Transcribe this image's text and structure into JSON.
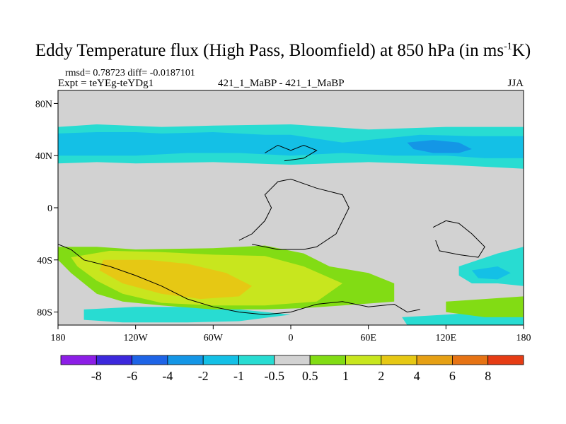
{
  "chart_data": {
    "type": "heatmap",
    "title": "Eddy Temperature flux (High Pass, Bloomfield) at 850 hPa (in ms",
    "title_sup": "-1",
    "title_tail": "K)",
    "stats": "rmsd= 0.78723 diff= -0.0187101",
    "expt": "Expt = teYEg-teYDg1",
    "run_label": "421_1_MaBP - 421_1_MaBP",
    "season": "JJA",
    "x_range": [
      -180,
      180
    ],
    "y_range": [
      -90,
      90
    ],
    "x_ticks": [
      {
        "value": -180,
        "label": "180"
      },
      {
        "value": -120,
        "label": "120W"
      },
      {
        "value": -60,
        "label": "60W"
      },
      {
        "value": 0,
        "label": "0"
      },
      {
        "value": 60,
        "label": "60E"
      },
      {
        "value": 120,
        "label": "120E"
      },
      {
        "value": 180,
        "label": "180"
      }
    ],
    "y_ticks": [
      {
        "value": 80,
        "label": "80N"
      },
      {
        "value": 40,
        "label": "40N"
      },
      {
        "value": 0,
        "label": "0"
      },
      {
        "value": -40,
        "label": "40S"
      },
      {
        "value": -80,
        "label": "80S"
      }
    ],
    "levels": [
      "-8",
      "-6",
      "-4",
      "-2",
      "-1",
      "-0.5",
      "0.5",
      "1",
      "2",
      "4",
      "6",
      "8"
    ],
    "colors": [
      "#8c1ee6",
      "#3c28dc",
      "#1e64e6",
      "#1496e6",
      "#14c0e6",
      "#28dcd2",
      "#d2d2d2",
      "#82dc14",
      "#c8e61e",
      "#e6c814",
      "#e6a014",
      "#e67314",
      "#e63c14"
    ],
    "regions": [
      {
        "level_index": 5,
        "points": [
          [
            -180,
            62
          ],
          [
            -150,
            64
          ],
          [
            -100,
            62
          ],
          [
            -60,
            63
          ],
          [
            0,
            64
          ],
          [
            60,
            60
          ],
          [
            120,
            62
          ],
          [
            180,
            62
          ],
          [
            180,
            30
          ],
          [
            120,
            33
          ],
          [
            60,
            35
          ],
          [
            0,
            33
          ],
          [
            -60,
            35
          ],
          [
            -120,
            34
          ],
          [
            -150,
            35
          ],
          [
            -180,
            34
          ]
        ]
      },
      {
        "level_index": 4,
        "points": [
          [
            -180,
            57
          ],
          [
            -150,
            58
          ],
          [
            -120,
            58
          ],
          [
            -100,
            57
          ],
          [
            -60,
            58
          ],
          [
            -20,
            56
          ],
          [
            0,
            56
          ],
          [
            40,
            50
          ],
          [
            60,
            52
          ],
          [
            100,
            56
          ],
          [
            140,
            55
          ],
          [
            180,
            55
          ],
          [
            180,
            38
          ],
          [
            150,
            38
          ],
          [
            120,
            40
          ],
          [
            80,
            40
          ],
          [
            40,
            42
          ],
          [
            0,
            40
          ],
          [
            -40,
            42
          ],
          [
            -80,
            42
          ],
          [
            -120,
            40
          ],
          [
            -150,
            40
          ],
          [
            -180,
            40
          ]
        ]
      },
      {
        "level_index": 3,
        "points": [
          [
            90,
            50
          ],
          [
            110,
            52
          ],
          [
            130,
            50
          ],
          [
            140,
            45
          ],
          [
            130,
            42
          ],
          [
            110,
            42
          ],
          [
            95,
            45
          ]
        ]
      },
      {
        "level_index": 5,
        "points": [
          [
            86,
            -84
          ],
          [
            120,
            -82
          ],
          [
            150,
            -80
          ],
          [
            180,
            -80
          ],
          [
            180,
            -90
          ],
          [
            90,
            -90
          ]
        ]
      },
      {
        "level_index": 5,
        "points": [
          [
            -160,
            -78
          ],
          [
            -120,
            -76
          ],
          [
            -80,
            -76
          ],
          [
            -40,
            -78
          ],
          [
            0,
            -82
          ],
          [
            -40,
            -87
          ],
          [
            -80,
            -88
          ],
          [
            -130,
            -88
          ],
          [
            -160,
            -86
          ]
        ]
      },
      {
        "level_index": 5,
        "points": [
          [
            130,
            -45
          ],
          [
            160,
            -35
          ],
          [
            180,
            -30
          ],
          [
            180,
            -60
          ],
          [
            160,
            -58
          ],
          [
            140,
            -58
          ],
          [
            130,
            -52
          ]
        ]
      },
      {
        "level_index": 4,
        "points": [
          [
            140,
            -48
          ],
          [
            160,
            -45
          ],
          [
            170,
            -50
          ],
          [
            160,
            -55
          ],
          [
            145,
            -54
          ]
        ]
      },
      {
        "level_index": 7,
        "points": [
          [
            -180,
            -30
          ],
          [
            -150,
            -30
          ],
          [
            -120,
            -32
          ],
          [
            -60,
            -31
          ],
          [
            -20,
            -29
          ],
          [
            10,
            -35
          ],
          [
            30,
            -45
          ],
          [
            60,
            -50
          ],
          [
            80,
            -58
          ],
          [
            80,
            -72
          ],
          [
            40,
            -75
          ],
          [
            10,
            -77
          ],
          [
            -20,
            -78
          ],
          [
            -60,
            -78
          ],
          [
            -100,
            -75
          ],
          [
            -130,
            -72
          ],
          [
            -150,
            -66
          ],
          [
            -170,
            -50
          ],
          [
            -180,
            -40
          ]
        ]
      },
      {
        "level_index": 8,
        "points": [
          [
            -170,
            -38
          ],
          [
            -140,
            -33
          ],
          [
            -100,
            -34
          ],
          [
            -60,
            -36
          ],
          [
            -20,
            -37
          ],
          [
            10,
            -45
          ],
          [
            40,
            -58
          ],
          [
            20,
            -72
          ],
          [
            -20,
            -75
          ],
          [
            -60,
            -75
          ],
          [
            -100,
            -73
          ],
          [
            -130,
            -66
          ],
          [
            -150,
            -56
          ],
          [
            -165,
            -45
          ]
        ]
      },
      {
        "level_index": 9,
        "points": [
          [
            -145,
            -40
          ],
          [
            -110,
            -40
          ],
          [
            -80,
            -43
          ],
          [
            -50,
            -50
          ],
          [
            -30,
            -60
          ],
          [
            -40,
            -68
          ],
          [
            -70,
            -70
          ],
          [
            -100,
            -66
          ],
          [
            -130,
            -58
          ],
          [
            -148,
            -48
          ]
        ]
      },
      {
        "level_index": 7,
        "points": [
          [
            120,
            -72
          ],
          [
            150,
            -70
          ],
          [
            180,
            -68
          ],
          [
            180,
            -84
          ],
          [
            150,
            -84
          ],
          [
            120,
            -80
          ]
        ]
      }
    ],
    "coast_w": [
      [
        -180,
        -28
      ],
      [
        -170,
        -32
      ],
      [
        -160,
        -40
      ],
      [
        -140,
        -45
      ],
      [
        -120,
        -52
      ],
      [
        -100,
        -60
      ],
      [
        -80,
        -70
      ],
      [
        -60,
        -76
      ],
      [
        -40,
        -80
      ],
      [
        -20,
        -82
      ],
      [
        0,
        -80
      ],
      [
        20,
        -74
      ],
      [
        40,
        -72
      ],
      [
        60,
        -76
      ],
      [
        80,
        -74
      ],
      [
        90,
        -80
      ],
      [
        100,
        -78
      ]
    ],
    "coast_africa": [
      [
        -40,
        -25
      ],
      [
        -30,
        -20
      ],
      [
        -20,
        -10
      ],
      [
        -15,
        0
      ],
      [
        -20,
        10
      ],
      [
        -10,
        20
      ],
      [
        0,
        22
      ],
      [
        20,
        15
      ],
      [
        40,
        10
      ],
      [
        45,
        0
      ],
      [
        35,
        -20
      ],
      [
        20,
        -30
      ],
      [
        10,
        -32
      ],
      [
        -10,
        -32
      ],
      [
        -30,
        -28
      ]
    ],
    "coast_aus": [
      [
        110,
        -15
      ],
      [
        120,
        -10
      ],
      [
        130,
        -12
      ],
      [
        140,
        -20
      ],
      [
        150,
        -30
      ],
      [
        145,
        -38
      ],
      [
        130,
        -36
      ],
      [
        115,
        -33
      ],
      [
        112,
        -25
      ]
    ],
    "coast_nh": [
      [
        -20,
        42
      ],
      [
        -10,
        48
      ],
      [
        0,
        44
      ],
      [
        10,
        48
      ],
      [
        20,
        44
      ],
      [
        10,
        38
      ],
      [
        -5,
        36
      ]
    ]
  }
}
